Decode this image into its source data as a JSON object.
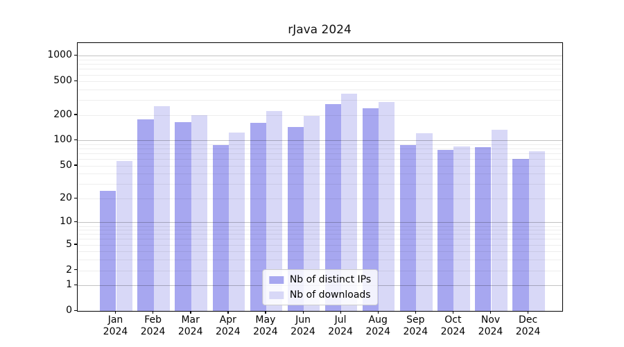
{
  "title": "rJava 2024",
  "legend": {
    "items": [
      {
        "label": "Nb of distinct IPs",
        "color": "#a7a7f0"
      },
      {
        "label": "Nb of downloads",
        "color": "#d8d8f7"
      }
    ]
  },
  "y_axis": {
    "tick_labels": [
      "1000",
      "500",
      "200",
      "100",
      "50",
      "20",
      "10",
      "5",
      "2",
      "1",
      "0"
    ]
  },
  "x_axis": {
    "year": "2024",
    "months": [
      "Jan",
      "Feb",
      "Mar",
      "Apr",
      "May",
      "Jun",
      "Jul",
      "Aug",
      "Sep",
      "Oct",
      "Nov",
      "Dec"
    ]
  },
  "chart_data": {
    "type": "bar",
    "title": "rJava 2024",
    "categories": [
      "Jan 2024",
      "Feb 2024",
      "Mar 2024",
      "Apr 2024",
      "May 2024",
      "Jun 2024",
      "Jul 2024",
      "Aug 2024",
      "Sep 2024",
      "Oct 2024",
      "Nov 2024",
      "Dec 2024"
    ],
    "series": [
      {
        "name": "Nb of distinct IPs",
        "color": "#a7a7f0",
        "values": [
          25,
          179,
          165,
          88,
          162,
          145,
          270,
          240,
          88,
          77,
          83,
          60
        ]
      },
      {
        "name": "Nb of downloads",
        "color": "#d8d8f7",
        "values": [
          57,
          253,
          200,
          124,
          222,
          195,
          360,
          288,
          122,
          85,
          134,
          74
        ]
      }
    ],
    "xlabel": "",
    "ylabel": "",
    "yscale": "log1p",
    "y_ticks": [
      1000,
      500,
      200,
      100,
      50,
      20,
      10,
      5,
      2,
      1,
      0
    ],
    "ylim": [
      0,
      1400
    ],
    "grid": true,
    "legend_position": "lower center"
  }
}
